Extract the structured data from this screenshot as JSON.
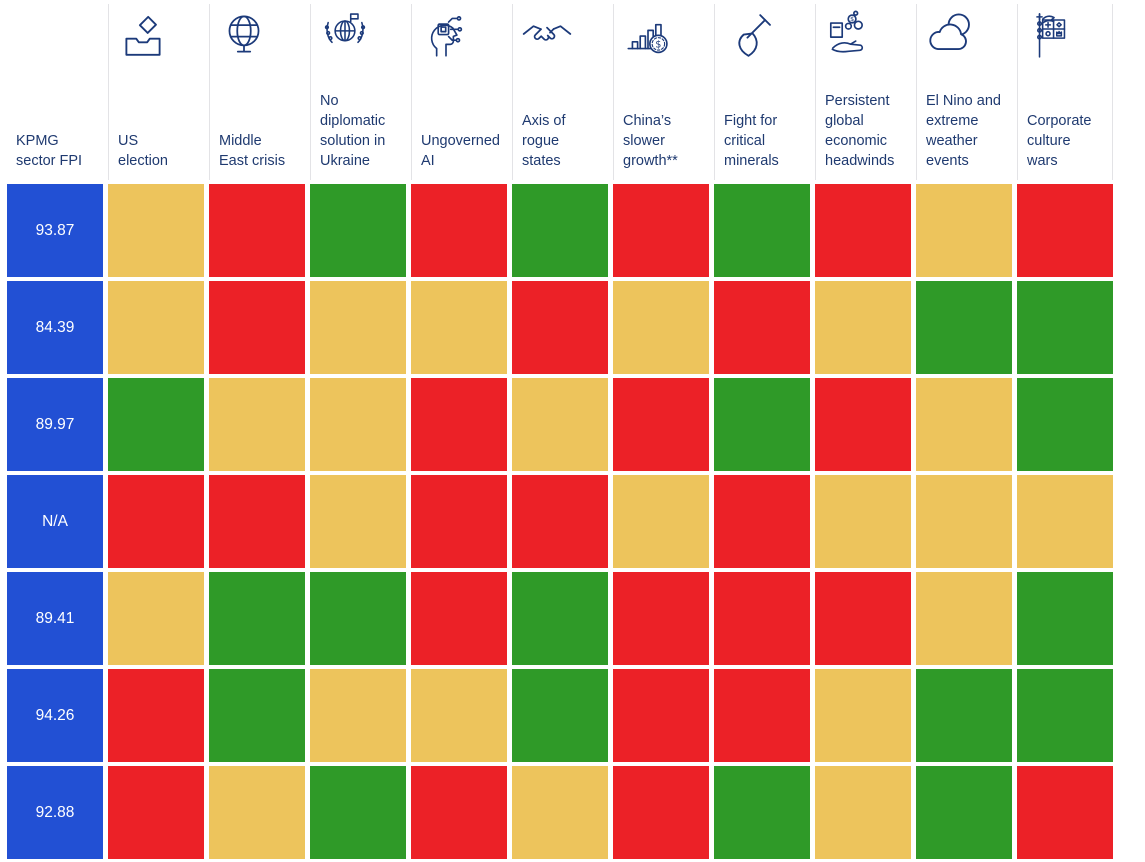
{
  "colors": {
    "fpi_cell_blue": "#2250d4",
    "risk_red": "#ec2127",
    "risk_green": "#2f9a28",
    "risk_amber": "#edc45c",
    "header_text": "#1f3a70",
    "icon_stroke": "#1c3a7a",
    "separator_gray": "#e3e3e6",
    "value_text": "#ffffff",
    "background": "#ffffff"
  },
  "chart_data": {
    "type": "heatmap",
    "row_header_label": "KPMG\nsector FPI",
    "color_scale": {
      "green": "#2f9a28",
      "amber": "#edc45c",
      "red": "#ec2127"
    },
    "columns": [
      {
        "id": "us-election",
        "label": "US\nelection",
        "icon": "ballot-box-icon"
      },
      {
        "id": "middle-east-crisis",
        "label": "Middle\nEast crisis",
        "icon": "globe-stand-icon"
      },
      {
        "id": "no-diplomatic-solution-ukraine",
        "label": "No\ndiplomatic\nsolution in\nUkraine",
        "icon": "globe-laurel-flag-icon"
      },
      {
        "id": "ungoverned-ai",
        "label": "Ungoverned\nAI",
        "icon": "ai-head-icon"
      },
      {
        "id": "axis-of-rogue-states",
        "label": "Axis of\nrogue\nstates",
        "icon": "handshake-icon"
      },
      {
        "id": "chinas-slower-growth",
        "label": "China’s\nslower\ngrowth**",
        "icon": "bar-chart-coin-icon"
      },
      {
        "id": "fight-for-critical-minerals",
        "label": "Fight for\ncritical\nminerals",
        "icon": "shovel-icon"
      },
      {
        "id": "persistent-global-economic-headwinds",
        "label": "Persistent\nglobal\neconomic\nheadwinds",
        "icon": "hand-coins-icon"
      },
      {
        "id": "el-nino-extreme-weather",
        "label": "El Nino and\nextreme\nweather\nevents",
        "icon": "cloud-sun-icon"
      },
      {
        "id": "corporate-culture-wars",
        "label": "Corporate\nculture\nwars",
        "icon": "crest-flag-icon"
      }
    ],
    "rows": [
      {
        "fpi": "93.87",
        "values": [
          "amber",
          "red",
          "green",
          "red",
          "green",
          "red",
          "green",
          "red",
          "amber",
          "red"
        ]
      },
      {
        "fpi": "84.39",
        "values": [
          "amber",
          "red",
          "amber",
          "amber",
          "red",
          "amber",
          "red",
          "amber",
          "green",
          "green"
        ]
      },
      {
        "fpi": "89.97",
        "values": [
          "green",
          "amber",
          "amber",
          "red",
          "amber",
          "red",
          "green",
          "red",
          "amber",
          "green"
        ]
      },
      {
        "fpi": "N/A",
        "values": [
          "red",
          "red",
          "amber",
          "red",
          "red",
          "amber",
          "red",
          "amber",
          "amber",
          "amber"
        ]
      },
      {
        "fpi": "89.41",
        "values": [
          "amber",
          "green",
          "green",
          "red",
          "green",
          "red",
          "red",
          "red",
          "amber",
          "green"
        ]
      },
      {
        "fpi": "94.26",
        "values": [
          "red",
          "green",
          "amber",
          "amber",
          "green",
          "red",
          "red",
          "amber",
          "green",
          "green"
        ]
      },
      {
        "fpi": "92.88",
        "values": [
          "red",
          "amber",
          "green",
          "red",
          "amber",
          "red",
          "green",
          "amber",
          "green",
          "red"
        ]
      }
    ]
  }
}
